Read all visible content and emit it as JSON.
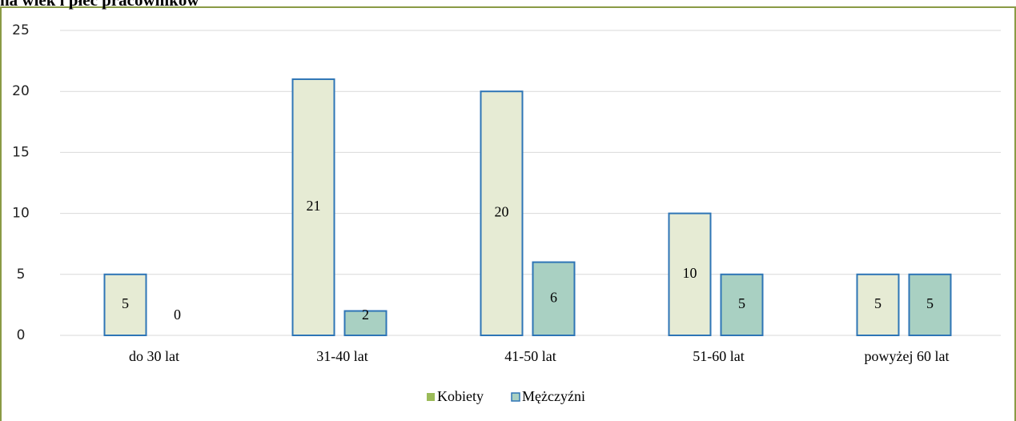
{
  "chart_data": {
    "type": "bar",
    "title": "na wiek i płeć pracowników",
    "categories": [
      "do 30 lat",
      "31-40 lat",
      "41-50 lat",
      "51-60 lat",
      "powyżej 60 lat"
    ],
    "series": [
      {
        "name": "Kobiety",
        "color": "#e6ebd4",
        "legend_color": "#9bbb59",
        "values": [
          5,
          21,
          20,
          10,
          5
        ]
      },
      {
        "name": "Mężczyźni",
        "color": "#a9d0c2",
        "legend_color": "#a9d0c2",
        "values": [
          0,
          2,
          6,
          5,
          5
        ]
      }
    ],
    "edge_color": "#2e75b6",
    "ylim": [
      0,
      25
    ],
    "yticks": [
      0,
      5,
      10,
      15,
      20,
      25
    ],
    "grid": true,
    "legend": "bottom"
  }
}
